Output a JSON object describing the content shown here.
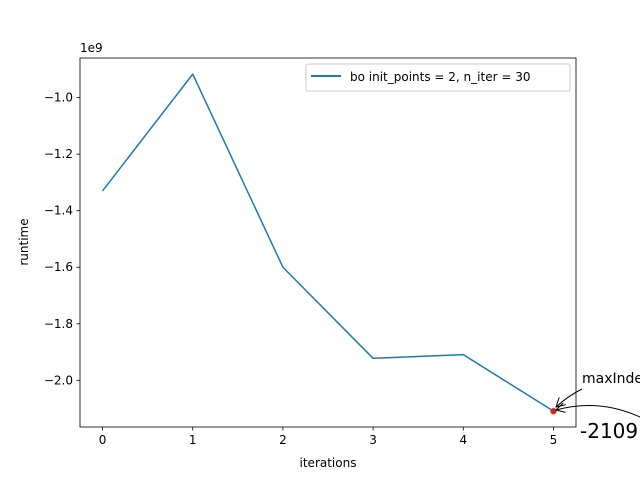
{
  "chart_data": {
    "type": "line",
    "xlabel": "iterations",
    "ylabel": "runtime",
    "offset_text": "1e9",
    "x": [
      0,
      1,
      2,
      3,
      4,
      5
    ],
    "series": [
      {
        "name": "bo  init_points = 2, n_iter = 30",
        "values": [
          -1330000000,
          -917000000,
          -1600000000,
          -1922000000,
          -1909000000,
          -2109000000
        ],
        "color": "#1f77b4"
      }
    ],
    "xlim": [
      -0.25,
      5.25
    ],
    "ylim": [
      -2.165,
      -0.86
    ],
    "y_scale": 1000000000,
    "x_ticks": [
      "0",
      "1",
      "2",
      "3",
      "4",
      "5"
    ],
    "y_ticks": [
      {
        "value": -1.0,
        "label": "−1.0"
      },
      {
        "value": -1.2,
        "label": "−1.2"
      },
      {
        "value": -1.4,
        "label": "−1.4"
      },
      {
        "value": -1.6,
        "label": "−1.6"
      },
      {
        "value": -1.8,
        "label": "−1.8"
      },
      {
        "value": -2.0,
        "label": "−2.0"
      }
    ],
    "legend_position": "top-right",
    "highlight_point": {
      "x": 5,
      "y": -2109000000,
      "color": "#d62728"
    },
    "annotation_label": "maxIndex",
    "annotation_value": "-2109"
  }
}
